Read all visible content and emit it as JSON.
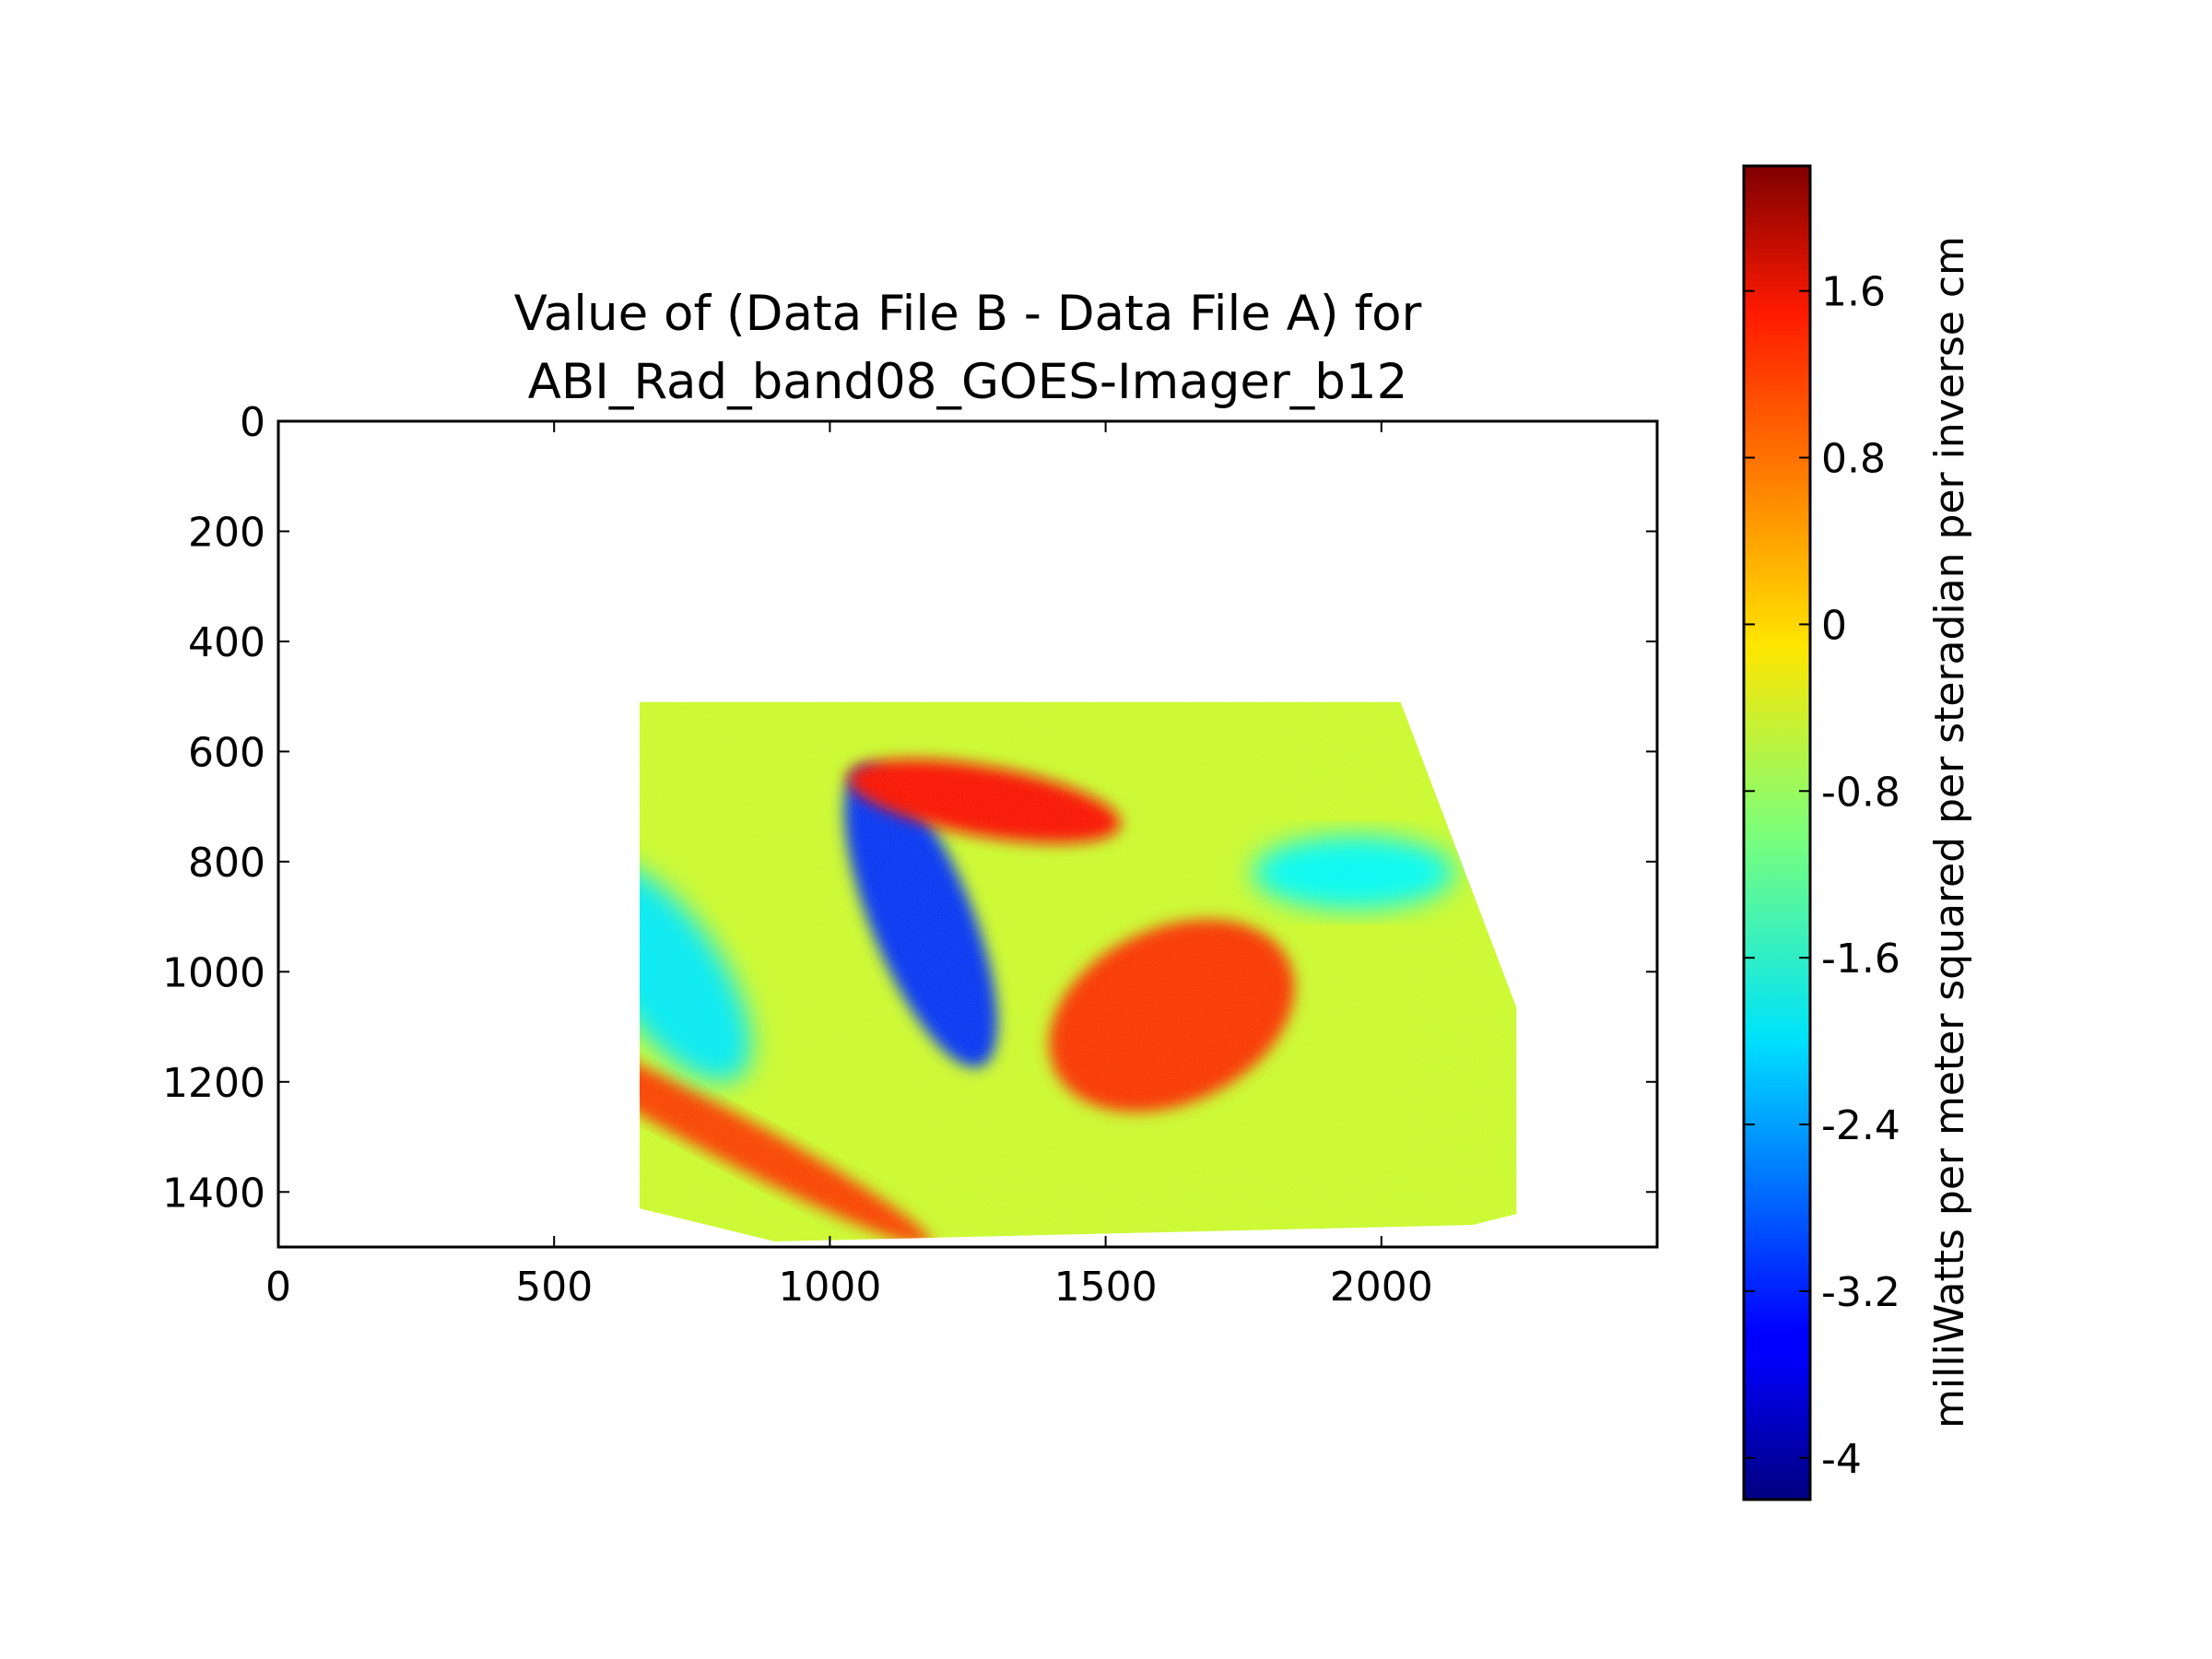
{
  "chart_data": {
    "type": "heatmap",
    "title_lines": [
      "Value of (Data File B - Data File A) for",
      "ABI_Rad_band08_GOES-Imager_b12"
    ],
    "xlabel": "",
    "ylabel": "",
    "xlim": [
      0,
      2500
    ],
    "ylim": [
      1500,
      0
    ],
    "y_inverted": true,
    "x_ticks": [
      "0",
      "500",
      "1000",
      "1500",
      "2000"
    ],
    "x_tick_values": [
      0,
      500,
      1000,
      1500,
      2000
    ],
    "y_ticks": [
      "0",
      "200",
      "400",
      "600",
      "800",
      "1000",
      "1200",
      "1400"
    ],
    "y_tick_values": [
      0,
      200,
      400,
      600,
      800,
      1000,
      1200,
      1400
    ],
    "colormap": "jet",
    "colorbar": {
      "label": "milliWatts per meter squared per steradian per inverse cm",
      "range": [
        -4.2,
        2.2
      ],
      "ticks": [
        "1.6",
        "0.8",
        "0",
        "-0.8",
        "-1.6",
        "-2.4",
        "-3.2",
        "-4"
      ],
      "tick_values": [
        1.6,
        0.8,
        0,
        -0.8,
        -1.6,
        -2.4,
        -3.2,
        -4.0
      ]
    },
    "data_region": {
      "polygon_data_units": [
        [
          655,
          510
        ],
        [
          2035,
          510
        ],
        [
          2245,
          1065
        ],
        [
          2245,
          1440
        ],
        [
          2165,
          1460
        ],
        [
          900,
          1490
        ],
        [
          655,
          1430
        ]
      ],
      "background_value": -0.5,
      "features": [
        {
          "name": "negative-streak-blue",
          "center": [
            1165,
            900
          ],
          "value": -3.1
        },
        {
          "name": "positive-band-top",
          "center": [
            1280,
            690
          ],
          "value": 1.3
        },
        {
          "name": "positive-blob-right",
          "center": [
            1620,
            1080
          ],
          "value": 1.1
        },
        {
          "name": "positive-arc-lower",
          "center": [
            800,
            1290
          ],
          "value": 1.0
        },
        {
          "name": "cyan-swirl-left",
          "center": [
            700,
            1000
          ],
          "value": -1.9
        },
        {
          "name": "cyan-patch-right",
          "center": [
            1950,
            820
          ],
          "value": -1.8
        }
      ]
    }
  }
}
